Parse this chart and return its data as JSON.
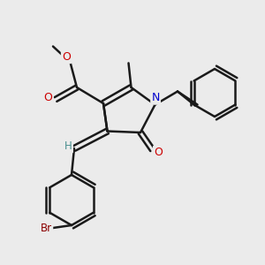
{
  "bg_color": "#ebebeb",
  "line_color": "#1a1a1a",
  "bond_lw": 1.8,
  "font_size": 9,
  "atoms": {
    "N": {
      "color": "#0000cc"
    },
    "O": {
      "color": "#cc0000"
    },
    "Br": {
      "color": "#8b0000"
    },
    "H": {
      "color": "#4a9090"
    },
    "C": {
      "color": "#1a1a1a"
    }
  }
}
